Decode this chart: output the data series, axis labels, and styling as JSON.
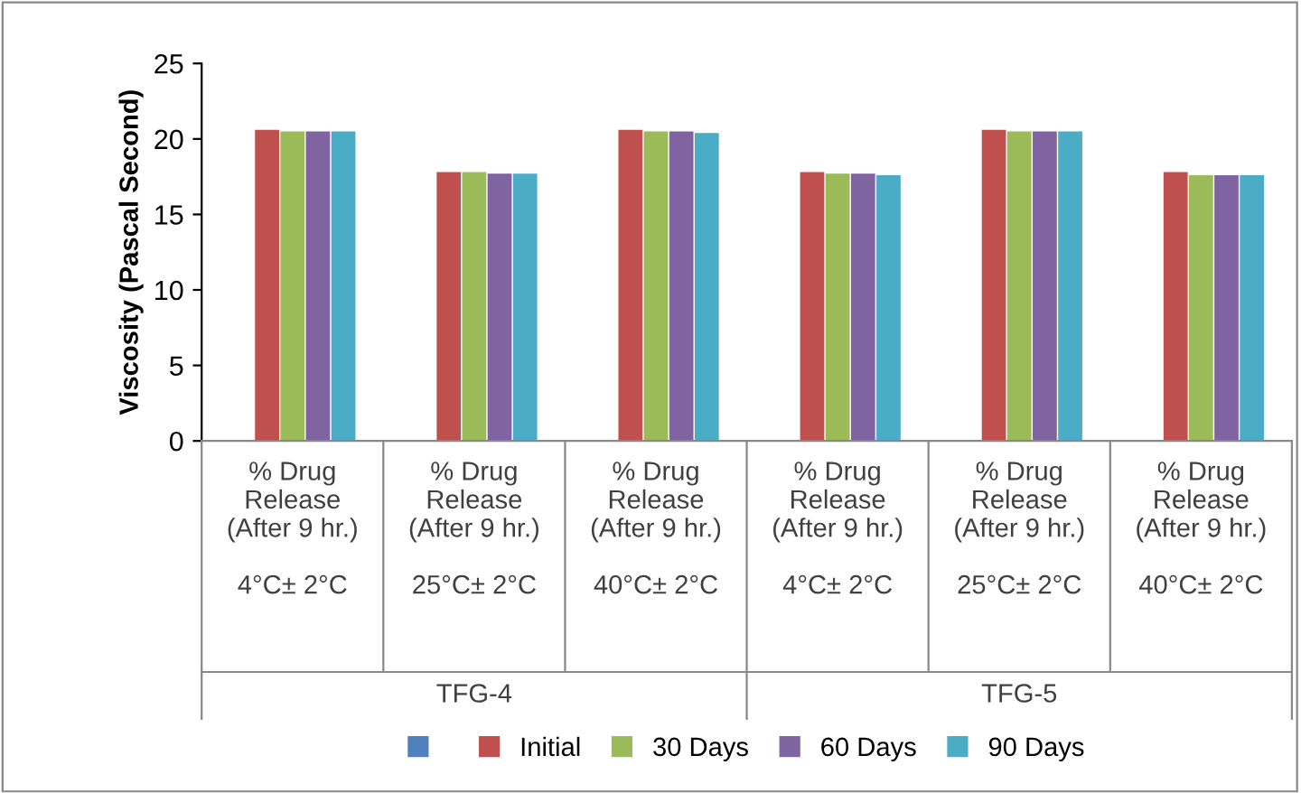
{
  "chart_data": {
    "type": "bar",
    "ylabel": "Viscosity (Pascal Second)",
    "categories": [
      "% Drug\nRelease\n(After 9 hr.)\n\n4°C± 2°C",
      "% Drug\nRelease\n(After 9 hr.)\n\n25°C± 2°C",
      "% Drug\nRelease\n(After 9 hr.)\n\n40°C± 2°C",
      "% Drug\nRelease\n(After 9 hr.)\n\n4°C± 2°C",
      "% Drug\nRelease\n(After 9 hr.)\n\n25°C± 2°C",
      "% Drug\nRelease\n(After 9 hr.)\n\n40°C± 2°C"
    ],
    "series": [
      {
        "color": "#4f81bd",
        "values": [
          null,
          null,
          null,
          null,
          null,
          null
        ]
      },
      {
        "name": "Initial",
        "color": "#c0504d",
        "values": [
          20.6,
          17.8,
          20.6,
          17.8,
          20.6,
          17.8
        ]
      },
      {
        "name": "30 Days",
        "color": "#9bbb59",
        "values": [
          20.5,
          17.8,
          20.5,
          17.7,
          20.5,
          17.6
        ]
      },
      {
        "name": "60 Days",
        "color": "#8064a2",
        "values": [
          20.5,
          17.7,
          20.5,
          17.7,
          20.5,
          17.6
        ]
      },
      {
        "name": "90 Days",
        "color": "#4bacc6",
        "values": [
          20.5,
          17.7,
          20.4,
          17.6,
          20.5,
          17.6
        ]
      }
    ],
    "annotations": [
      "TFG-4",
      "TFG-5"
    ],
    "ylim": [
      0,
      25
    ],
    "yticks": [
      0,
      5,
      10,
      15,
      20,
      25
    ],
    "grid": false,
    "legend": "bottom"
  }
}
